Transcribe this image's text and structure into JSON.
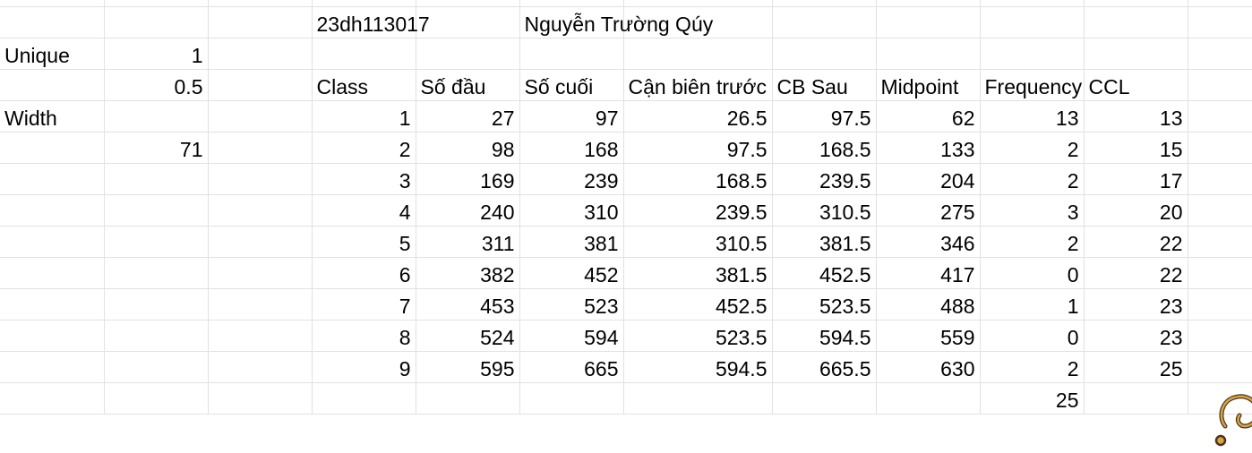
{
  "sheet": {
    "id_cell": "23dh113017",
    "name_cell": "Nguyễn Trường Qúy",
    "unique_label": "Unique",
    "unique_value": "1",
    "half_value": "0.5",
    "width_label": "Width",
    "width_value": "71",
    "headers": [
      "Class",
      "Số đầu",
      "Số cuối",
      "Cận biên trước",
      "CB Sau",
      "Midpoint",
      "Frequency",
      "CCL"
    ],
    "rows": [
      [
        "1",
        "27",
        "97",
        "26.5",
        "97.5",
        "62",
        "13",
        "13"
      ],
      [
        "2",
        "98",
        "168",
        "97.5",
        "168.5",
        "133",
        "2",
        "15"
      ],
      [
        "3",
        "169",
        "239",
        "168.5",
        "239.5",
        "204",
        "2",
        "17"
      ],
      [
        "4",
        "240",
        "310",
        "239.5",
        "310.5",
        "275",
        "3",
        "20"
      ],
      [
        "5",
        "311",
        "381",
        "310.5",
        "381.5",
        "346",
        "2",
        "22"
      ],
      [
        "6",
        "382",
        "452",
        "381.5",
        "452.5",
        "417",
        "0",
        "22"
      ],
      [
        "7",
        "453",
        "523",
        "452.5",
        "523.5",
        "488",
        "1",
        "23"
      ],
      [
        "8",
        "524",
        "594",
        "523.5",
        "594.5",
        "559",
        "0",
        "23"
      ],
      [
        "9",
        "595",
        "665",
        "594.5",
        "665.5",
        "630",
        "2",
        "25"
      ]
    ],
    "frequency_total": "25"
  },
  "colors": {
    "gridline": "#e1e1e1",
    "sticker_fill": "#d9a441",
    "sticker_outline": "#4a3520"
  },
  "icons": {
    "sticker": "cartoon-sticker-icon"
  }
}
